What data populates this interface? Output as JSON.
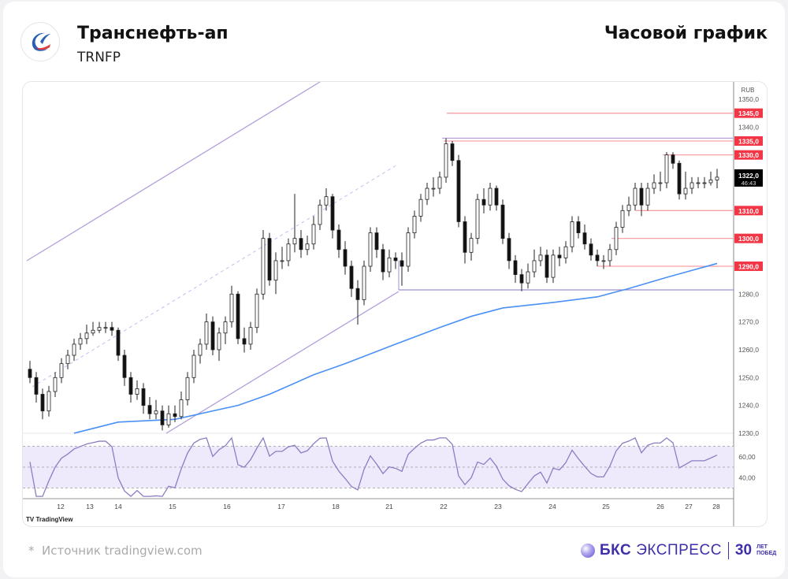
{
  "header": {
    "company": "Транснефть-ап",
    "ticker": "TRNFP",
    "timeframe": "Часовой график"
  },
  "footer": {
    "source": "Источник tradingview.com",
    "source_star": "*",
    "brand_bold": "БКС",
    "brand_light": "ЭКСПРЕСС",
    "brand_30": "30",
    "brand_years": "ЛЕТ",
    "brand_wins": "ПОБЕД"
  },
  "chart_data": {
    "type": "candlestick",
    "currency": "RUB",
    "price_ticks": [
      "1350,0",
      "1340,0",
      "1280,0",
      "1270,0",
      "1260,0",
      "1250,0",
      "1240,0",
      "1230,0"
    ],
    "price_tick_values": [
      1350,
      1340,
      1280,
      1270,
      1260,
      1250,
      1240,
      1230
    ],
    "ylim": [
      1230,
      1352
    ],
    "levels": [
      {
        "price": 1345,
        "label": "1345,0",
        "color": "#f23645"
      },
      {
        "price": 1335,
        "label": "1335,0",
        "color": "#f23645"
      },
      {
        "price": 1330,
        "label": "1330,0",
        "color": "#f23645"
      },
      {
        "price": 1310,
        "label": "1310,0",
        "color": "#f23645"
      },
      {
        "price": 1300,
        "label": "1300,0",
        "color": "#f23645"
      },
      {
        "price": 1290,
        "label": "1290,0",
        "color": "#f23645"
      }
    ],
    "last_price": {
      "label": "1322,0",
      "countdown": "46:43",
      "color": "#000000"
    },
    "x_labels": [
      "12",
      "13",
      "14",
      "15",
      "16",
      "17",
      "18",
      "21",
      "22",
      "23",
      "24",
      "25",
      "26",
      "27",
      "28"
    ],
    "candles": [
      [
        1253,
        1256,
        1248,
        1250
      ],
      [
        1250,
        1252,
        1241,
        1244
      ],
      [
        1244,
        1246,
        1235,
        1238
      ],
      [
        1238,
        1247,
        1236,
        1245
      ],
      [
        1245,
        1252,
        1243,
        1250
      ],
      [
        1250,
        1257,
        1248,
        1255
      ],
      [
        1255,
        1260,
        1253,
        1258
      ],
      [
        1258,
        1264,
        1256,
        1262
      ],
      [
        1262,
        1266,
        1260,
        1264
      ],
      [
        1264,
        1269,
        1262,
        1266
      ],
      [
        1266,
        1270,
        1265,
        1267
      ],
      [
        1267,
        1270,
        1266,
        1268
      ],
      [
        1268,
        1270,
        1266,
        1268
      ],
      [
        1268,
        1270,
        1265,
        1267
      ],
      [
        1267,
        1268,
        1256,
        1258
      ],
      [
        1258,
        1260,
        1247,
        1250
      ],
      [
        1250,
        1252,
        1241,
        1244
      ],
      [
        1244,
        1249,
        1242,
        1246
      ],
      [
        1246,
        1248,
        1237,
        1240
      ],
      [
        1240,
        1243,
        1235,
        1237
      ],
      [
        1237,
        1242,
        1235,
        1238
      ],
      [
        1238,
        1240,
        1231,
        1233
      ],
      [
        1233,
        1240,
        1232,
        1237
      ],
      [
        1237,
        1240,
        1234,
        1236
      ],
      [
        1236,
        1245,
        1235,
        1242
      ],
      [
        1242,
        1252,
        1240,
        1250
      ],
      [
        1250,
        1260,
        1248,
        1258
      ],
      [
        1258,
        1264,
        1255,
        1262
      ],
      [
        1262,
        1273,
        1260,
        1270
      ],
      [
        1270,
        1272,
        1258,
        1260
      ],
      [
        1260,
        1268,
        1256,
        1266
      ],
      [
        1266,
        1272,
        1262,
        1270
      ],
      [
        1270,
        1283,
        1268,
        1280
      ],
      [
        1280,
        1281,
        1262,
        1264
      ],
      [
        1264,
        1268,
        1259,
        1262
      ],
      [
        1262,
        1270,
        1260,
        1268
      ],
      [
        1268,
        1282,
        1266,
        1280
      ],
      [
        1280,
        1303,
        1278,
        1300
      ],
      [
        1300,
        1302,
        1283,
        1285
      ],
      [
        1285,
        1295,
        1280,
        1292
      ],
      [
        1292,
        1297,
        1289,
        1292
      ],
      [
        1292,
        1300,
        1290,
        1298
      ],
      [
        1298,
        1316,
        1295,
        1300
      ],
      [
        1300,
        1303,
        1293,
        1296
      ],
      [
        1296,
        1301,
        1294,
        1298
      ],
      [
        1298,
        1308,
        1296,
        1305
      ],
      [
        1305,
        1314,
        1303,
        1312
      ],
      [
        1312,
        1318,
        1310,
        1315
      ],
      [
        1315,
        1316,
        1300,
        1303
      ],
      [
        1303,
        1305,
        1293,
        1296
      ],
      [
        1296,
        1299,
        1287,
        1290
      ],
      [
        1290,
        1292,
        1279,
        1282
      ],
      [
        1282,
        1285,
        1269,
        1278
      ],
      [
        1278,
        1292,
        1276,
        1290
      ],
      [
        1290,
        1304,
        1288,
        1302
      ],
      [
        1302,
        1304,
        1293,
        1296
      ],
      [
        1296,
        1298,
        1285,
        1288
      ],
      [
        1288,
        1296,
        1286,
        1293
      ],
      [
        1293,
        1295,
        1289,
        1292
      ],
      [
        1292,
        1295,
        1283,
        1290
      ],
      [
        1290,
        1304,
        1288,
        1302
      ],
      [
        1302,
        1310,
        1300,
        1308
      ],
      [
        1308,
        1316,
        1306,
        1314
      ],
      [
        1314,
        1320,
        1312,
        1318
      ],
      [
        1318,
        1322,
        1315,
        1318
      ],
      [
        1318,
        1324,
        1316,
        1322
      ],
      [
        1322,
        1336,
        1320,
        1334
      ],
      [
        1334,
        1335,
        1326,
        1328
      ],
      [
        1328,
        1330,
        1304,
        1306
      ],
      [
        1306,
        1308,
        1291,
        1295
      ],
      [
        1295,
        1302,
        1292,
        1300
      ],
      [
        1300,
        1316,
        1298,
        1314
      ],
      [
        1314,
        1318,
        1309,
        1312
      ],
      [
        1312,
        1320,
        1310,
        1318
      ],
      [
        1318,
        1319,
        1310,
        1312
      ],
      [
        1312,
        1314,
        1298,
        1300
      ],
      [
        1300,
        1302,
        1289,
        1292
      ],
      [
        1292,
        1294,
        1284,
        1287
      ],
      [
        1287,
        1289,
        1281,
        1284
      ],
      [
        1284,
        1291,
        1282,
        1288
      ],
      [
        1288,
        1296,
        1286,
        1292
      ],
      [
        1292,
        1297,
        1290,
        1294
      ],
      [
        1294,
        1296,
        1284,
        1286
      ],
      [
        1286,
        1296,
        1284,
        1294
      ],
      [
        1294,
        1297,
        1290,
        1293
      ],
      [
        1293,
        1299,
        1291,
        1297
      ],
      [
        1297,
        1308,
        1295,
        1306
      ],
      [
        1306,
        1308,
        1300,
        1302
      ],
      [
        1302,
        1305,
        1296,
        1298
      ],
      [
        1298,
        1300,
        1292,
        1294
      ],
      [
        1294,
        1296,
        1290,
        1292
      ],
      [
        1292,
        1294,
        1289,
        1292
      ],
      [
        1292,
        1298,
        1290,
        1296
      ],
      [
        1296,
        1306,
        1294,
        1304
      ],
      [
        1304,
        1312,
        1302,
        1310
      ],
      [
        1310,
        1315,
        1308,
        1312
      ],
      [
        1312,
        1320,
        1310,
        1318
      ],
      [
        1318,
        1320,
        1308,
        1312
      ],
      [
        1312,
        1320,
        1310,
        1318
      ],
      [
        1318,
        1323,
        1316,
        1320
      ],
      [
        1320,
        1324,
        1317,
        1320
      ],
      [
        1320,
        1331,
        1318,
        1330
      ],
      [
        1330,
        1331,
        1325,
        1327
      ],
      [
        1327,
        1328,
        1314,
        1316
      ],
      [
        1316,
        1324,
        1314,
        1318
      ],
      [
        1318,
        1322,
        1316,
        1320
      ],
      [
        1320,
        1322,
        1318,
        1320
      ],
      [
        1320,
        1322,
        1318,
        1320
      ],
      [
        1320,
        1324,
        1319,
        1321
      ],
      [
        1321,
        1325,
        1318,
        1322
      ]
    ],
    "moving_average": {
      "color": "#4a90f5",
      "points": [
        [
          7,
          1230
        ],
        [
          14,
          1234
        ],
        [
          23,
          1235
        ],
        [
          33,
          1240
        ],
        [
          38,
          1244
        ],
        [
          45,
          1251
        ],
        [
          50,
          1255
        ],
        [
          58,
          1262
        ],
        [
          65,
          1268
        ],
        [
          70,
          1272
        ],
        [
          75,
          1275
        ],
        [
          83,
          1277
        ],
        [
          90,
          1279
        ],
        [
          95,
          1282
        ],
        [
          101,
          1286
        ],
        [
          109,
          1291
        ]
      ]
    },
    "rsi": {
      "ticks": [
        "60,00",
        "40,00"
      ],
      "tick_values": [
        60,
        40
      ],
      "band": [
        70,
        30
      ],
      "ylim": [
        20,
        80
      ],
      "color": "#8e7cc3"
    }
  }
}
